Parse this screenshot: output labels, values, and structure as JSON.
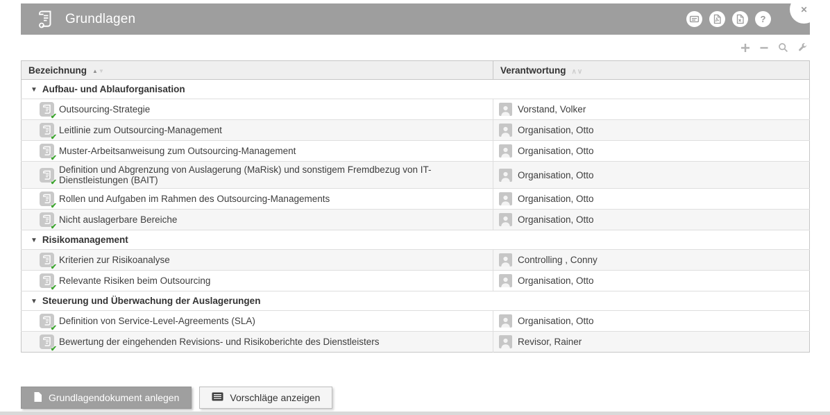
{
  "header": {
    "title": "Grundlagen",
    "title_icon": "scroll-document-icon",
    "actions": [
      {
        "icon": "text-card-icon"
      },
      {
        "icon": "pdf-export-icon"
      },
      {
        "icon": "word-export-icon"
      },
      {
        "icon": "help-icon",
        "label": "?"
      }
    ],
    "close_icon": "✕"
  },
  "toolbar": {
    "icons": [
      "add-icon",
      "remove-icon",
      "search-icon",
      "wrench-icon"
    ]
  },
  "table": {
    "columns": [
      {
        "label": "Bezeichnung",
        "sort": "asc"
      },
      {
        "label": "Verantwortung",
        "sort": "none"
      }
    ],
    "rows": [
      {
        "type": "category",
        "label": "Aufbau- und Ablauforganisation"
      },
      {
        "type": "doc",
        "label": "Outsourcing-Strategie",
        "responsible": "Vorstand, Volker",
        "shaded": false
      },
      {
        "type": "doc",
        "label": "Leitlinie zum Outsourcing-Management",
        "responsible": "Organisation, Otto",
        "shaded": true
      },
      {
        "type": "doc",
        "label": "Muster-Arbeitsanweisung zum Outsourcing-Management",
        "responsible": "Organisation, Otto",
        "shaded": false
      },
      {
        "type": "doc",
        "label": "Definition und Abgrenzung von Auslagerung (MaRisk) und sonstigem Fremdbezug von IT-Dienstleistungen (BAIT)",
        "responsible": "Organisation, Otto",
        "shaded": true
      },
      {
        "type": "doc",
        "label": "Rollen und Aufgaben im Rahmen des Outsourcing-Managements",
        "responsible": "Organisation, Otto",
        "shaded": false
      },
      {
        "type": "doc",
        "label": "Nicht auslagerbare Bereiche",
        "responsible": "Organisation, Otto",
        "shaded": true
      },
      {
        "type": "category",
        "label": "Risikomanagement"
      },
      {
        "type": "doc",
        "label": "Kriterien zur Risikoanalyse",
        "responsible": "Controlling , Conny",
        "shaded": true
      },
      {
        "type": "doc",
        "label": "Relevante Risiken beim Outsourcing",
        "responsible": "Organisation, Otto",
        "shaded": false
      },
      {
        "type": "category",
        "label": "Steuerung und Überwachung der Auslagerungen"
      },
      {
        "type": "doc",
        "label": "Definition von Service-Level-Agreements (SLA)",
        "responsible": "Organisation, Otto",
        "shaded": false
      },
      {
        "type": "doc",
        "label": "Bewertung der eingehenden Revisions- und Risikoberichte des Dienstleisters",
        "responsible": "Revisor, Rainer",
        "shaded": true
      }
    ]
  },
  "footer": {
    "buttons": [
      {
        "label": "Grundlagendokument anlegen",
        "icon": "document-page-icon",
        "style": "primary"
      },
      {
        "label": "Vorschläge anzeigen",
        "icon": "list-icon",
        "style": "secondary"
      }
    ]
  },
  "colors": {
    "header_bar": "#9e9e9e",
    "check_green": "#3aa32c",
    "shaded_row": "#f6f6f6",
    "table_border": "#c6c6c6"
  }
}
